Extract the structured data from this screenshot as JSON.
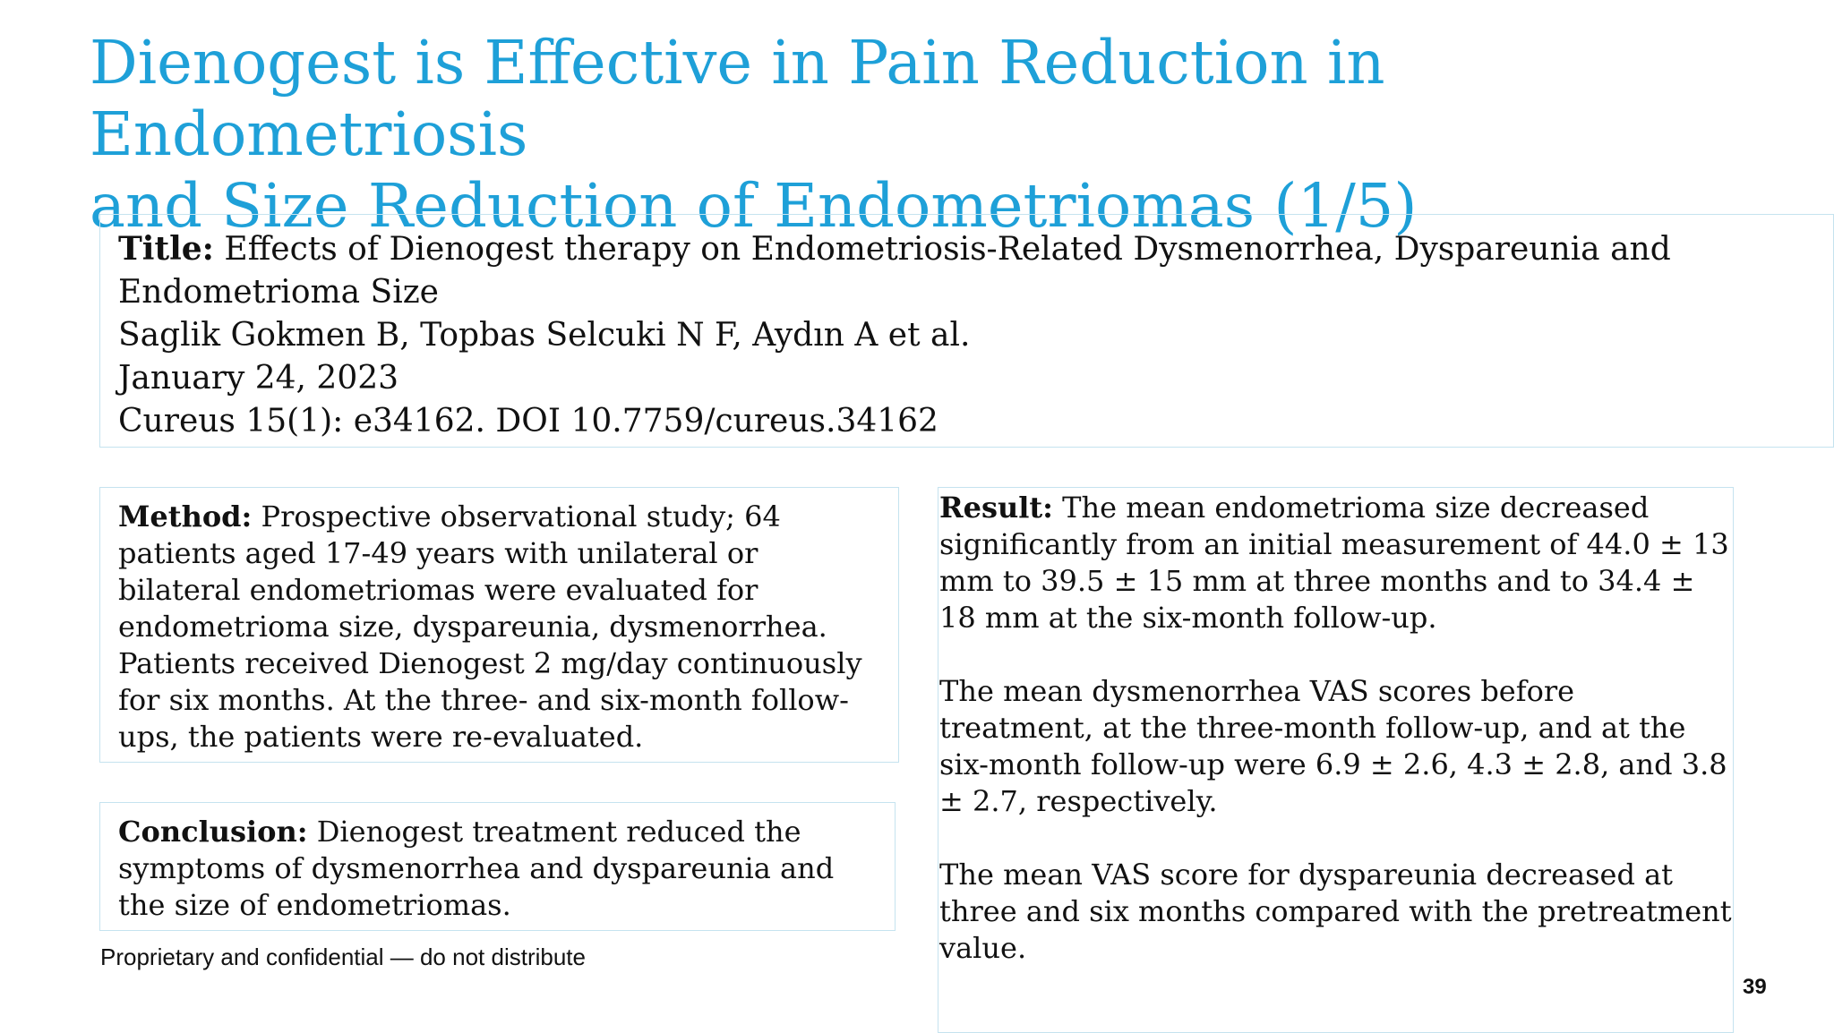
{
  "slide": {
    "title_line1": "Dienogest is Effective in Pain Reduction in Endometriosis",
    "title_line2": "and Size Reduction of Endometriomas (1/5)"
  },
  "study": {
    "title_label": "Title:",
    "title_text": " Effects of Dienogest therapy on Endometriosis-Related Dysmenorrhea, Dyspareunia and Endometrioma Size",
    "authors": "Saglik Gokmen B, Topbas Selcuki N F, Aydın A et al.",
    "date": "January 24, 2023",
    "citation": "Cureus 15(1): e34162. DOI 10.7759/cureus.34162"
  },
  "method": {
    "label": "Method:",
    "text1": " Prospective observational study; 64 patients aged 17-49 years with unilateral or bilateral endometriomas were evaluated for endometrioma size, dyspareunia, dysmenorrhea.",
    "text2": "Patients received Dienogest 2 mg/day continuously for six months. At the three- and six-month follow-ups, the patients were re-evaluated."
  },
  "conclusion": {
    "label": "Conclusion:",
    "text": " Dienogest treatment reduced the symptoms of dysmenorrhea and dyspareunia and the size of endometriomas."
  },
  "result": {
    "label": "Result:",
    "text1": " The mean endometrioma size decreased significantly from an initial measurement of 44.0 ± 13 mm to 39.5 ± 15 mm at three months and to 34.4 ± 18 mm at the six-month follow-up.",
    "text2": "The mean dysmenorrhea VAS scores before treatment, at the three-month follow-up, and at the six-month follow-up were 6.9 ± 2.6, 4.3 ± 2.8, and 3.8 ± 2.7, respectively.",
    "text3": "The mean VAS score for dyspareunia decreased at three and six months compared with the pretreatment value."
  },
  "footer": {
    "confidential": "Proprietary and confidential — do not distribute",
    "page_number": "39"
  },
  "colors": {
    "title": "#1ea0d8",
    "box_border": "#c5e3ef"
  }
}
